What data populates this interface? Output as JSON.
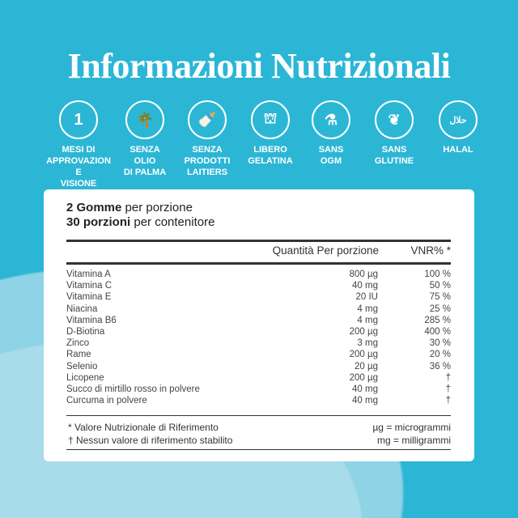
{
  "title": "Informazioni Nutrizionali",
  "badges": [
    {
      "icon": "number-1-icon",
      "glyph": "1",
      "label": "MESI DI\nAPPROVAZIONE\nVISIONE"
    },
    {
      "icon": "palm-tree-icon",
      "glyph": "🌴",
      "label": "SENZA\nOLIO\nDI PALMA"
    },
    {
      "icon": "milk-bottle-icon",
      "glyph": "🍼",
      "label": "SENZA\nPRODOTTI\nLAITIERS"
    },
    {
      "icon": "gelatin-icon",
      "glyph": "⛫",
      "label": "LIBERO\nGELATINA"
    },
    {
      "icon": "flask-icon",
      "glyph": "⚗",
      "label": "SANS\nOGM"
    },
    {
      "icon": "wheat-icon",
      "glyph": "❦",
      "label": "SANS\nGLUTINE"
    },
    {
      "icon": "halal-icon",
      "glyph": "حلال",
      "label": "HALAL"
    }
  ],
  "serving": {
    "amount": "2 Gomme",
    "amount_suffix": " per porzione",
    "servings": "30 porzioni",
    "servings_suffix": " per contenitore"
  },
  "table": {
    "headers": {
      "quantity": "Quantità Per porzione",
      "vnr": "VNR% *"
    },
    "rows": [
      {
        "name": "Vitamina A",
        "qty": "800 µg",
        "vnr": "100 %"
      },
      {
        "name": "Vitamina C",
        "qty": "40 mg",
        "vnr": "50 %"
      },
      {
        "name": "Vitamina E",
        "qty": "20 IU",
        "vnr": "75 %"
      },
      {
        "name": "Niacina",
        "qty": "4 mg",
        "vnr": "25 %"
      },
      {
        "name": "Vitamina B6",
        "qty": "4 mg",
        "vnr": "285 %"
      },
      {
        "name": "D-Biotina",
        "qty": "200 µg",
        "vnr": "400 %"
      },
      {
        "name": "Zinco",
        "qty": "3 mg",
        "vnr": "30 %"
      },
      {
        "name": "Rame",
        "qty": "200 µg",
        "vnr": "20 %"
      },
      {
        "name": "Selenio",
        "qty": "20 µg",
        "vnr": "36 %"
      },
      {
        "name": "Licopene",
        "qty": "200 µg",
        "vnr": "†"
      },
      {
        "name": "Succo di mirtillo rosso in polvere",
        "qty": "40 mg",
        "vnr": "†"
      },
      {
        "name": "Curcuma in polvere",
        "qty": "40 mg",
        "vnr": "†"
      }
    ]
  },
  "footnotes": {
    "star": "* Valore Nutrizionale di Riferimento",
    "dagger": "† Nessun valore di riferimento stabilito",
    "ug": "µg = microgrammi",
    "mg": "mg = milligrammi"
  }
}
